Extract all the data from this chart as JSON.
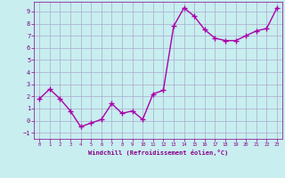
{
  "x": [
    0,
    1,
    2,
    3,
    4,
    5,
    6,
    7,
    8,
    9,
    10,
    11,
    12,
    13,
    14,
    15,
    16,
    17,
    18,
    19,
    20,
    21,
    22,
    23
  ],
  "y": [
    1.8,
    2.6,
    1.8,
    0.8,
    -0.5,
    -0.2,
    0.1,
    1.4,
    0.6,
    0.8,
    0.1,
    2.2,
    2.5,
    7.8,
    9.3,
    8.6,
    7.5,
    6.8,
    6.6,
    6.6,
    7.0,
    7.4,
    7.6,
    9.3
  ],
  "line_color": "#aa00aa",
  "marker": "+",
  "markersize": 4,
  "linewidth": 1.0,
  "xlim": [
    -0.5,
    23.5
  ],
  "ylim": [
    -1.5,
    9.8
  ],
  "yticks": [
    -1,
    0,
    1,
    2,
    3,
    4,
    5,
    6,
    7,
    8,
    9
  ],
  "xticks": [
    0,
    1,
    2,
    3,
    4,
    5,
    6,
    7,
    8,
    9,
    10,
    11,
    12,
    13,
    14,
    15,
    16,
    17,
    18,
    19,
    20,
    21,
    22,
    23
  ],
  "xlabel": "Windchill (Refroidissement éolien,°C)",
  "background_color": "#c8eef0",
  "grid_color": "#aaaacc",
  "axis_color": "#880088",
  "tick_color": "#880088",
  "label_color": "#880088"
}
